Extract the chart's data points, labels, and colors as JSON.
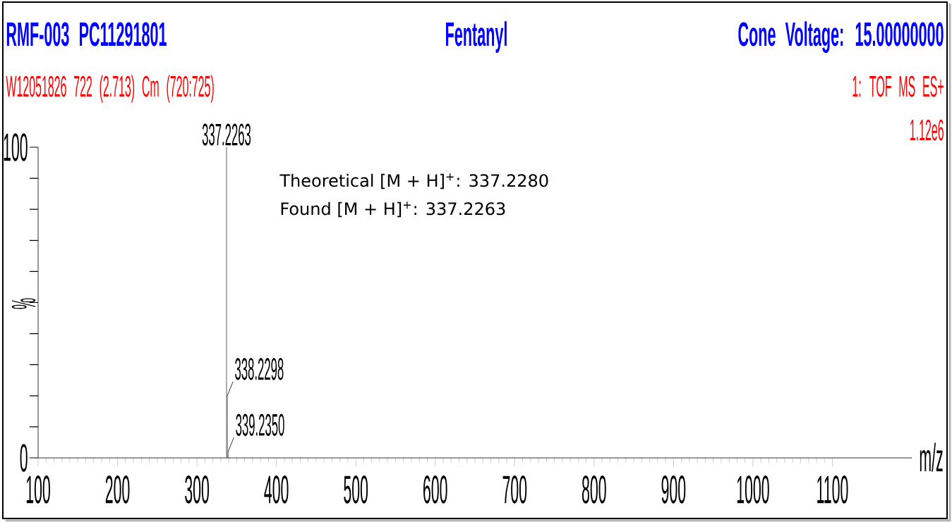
{
  "chart_data": {
    "type": "bar",
    "title": "Fentanyl",
    "annotations": [
      "RMF-003 PC11291801",
      "Cone Voltage: 15.00000000",
      "W12051826 722 (2.713) Cm (720:725)",
      "1: TOF MS ES+",
      "1.12e6",
      "Theoretical [M + H]$^{+}$: 337.2280",
      "Found [M + H]$^{+}$: 337.2263",
      {
        "text": "337.2263",
        "x": 337.2263,
        "y": 100
      },
      {
        "text": "338.2298",
        "x": 338.2298,
        "y": 20
      },
      {
        "text": "339.2350",
        "x": 339.235,
        "y": 2
      }
    ],
    "xlabel": "m/z",
    "ylabel": "%",
    "x": [
      337.2263,
      338.2298,
      339.235
    ],
    "values": [
      100,
      20,
      2
    ],
    "color": "#606060",
    "xlim": [
      100,
      1200
    ],
    "ylim": [
      0,
      100
    ],
    "xticks": [
      100,
      200,
      300,
      400,
      500,
      600,
      700,
      800,
      900,
      1000,
      1100
    ],
    "yticks": [
      0,
      {
        "value": 10,
        "label": null
      },
      {
        "value": 20,
        "label": null
      },
      {
        "value": 30,
        "label": null
      },
      {
        "value": 40,
        "label": null
      },
      {
        "value": 50,
        "label": null
      },
      {
        "value": 60,
        "label": null
      },
      {
        "value": 70,
        "label": null
      },
      {
        "value": 80,
        "label": null
      },
      {
        "value": 90,
        "label": null
      },
      100
    ]
  }
}
